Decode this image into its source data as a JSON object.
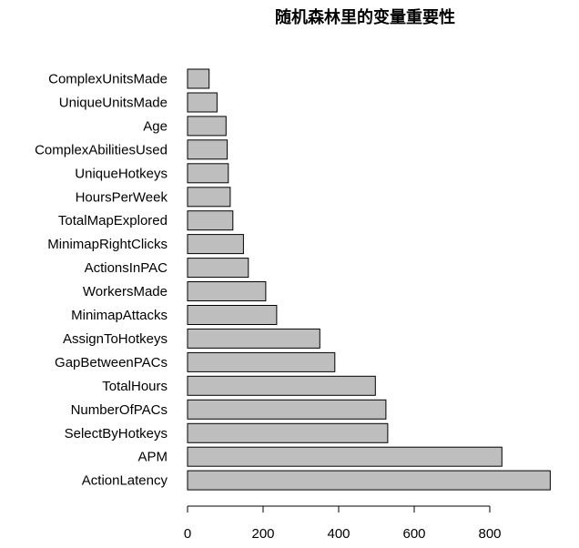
{
  "chart_data": {
    "type": "bar",
    "orientation": "horizontal",
    "title": "随机森林里的变量重要性",
    "xlabel": "",
    "ylabel": "",
    "categories": [
      "ComplexUnitsMade",
      "UniqueUnitsMade",
      "Age",
      "ComplexAbilitiesUsed",
      "UniqueHotkeys",
      "HoursPerWeek",
      "TotalMapExplored",
      "MinimapRightClicks",
      "ActionsInPAC",
      "WorkersMade",
      "MinimapAttacks",
      "AssignToHotkeys",
      "GapBetweenPACs",
      "TotalHours",
      "NumberOfPACs",
      "SelectByHotkeys",
      "APM",
      "ActionLatency"
    ],
    "values": [
      57,
      78,
      102,
      105,
      108,
      113,
      120,
      148,
      161,
      207,
      236,
      350,
      390,
      497,
      525,
      530,
      832,
      960
    ],
    "xlim": [
      0,
      960
    ],
    "xticks": [
      0,
      200,
      400,
      600,
      800
    ],
    "bar_color": "#bebebe",
    "grid": false
  }
}
